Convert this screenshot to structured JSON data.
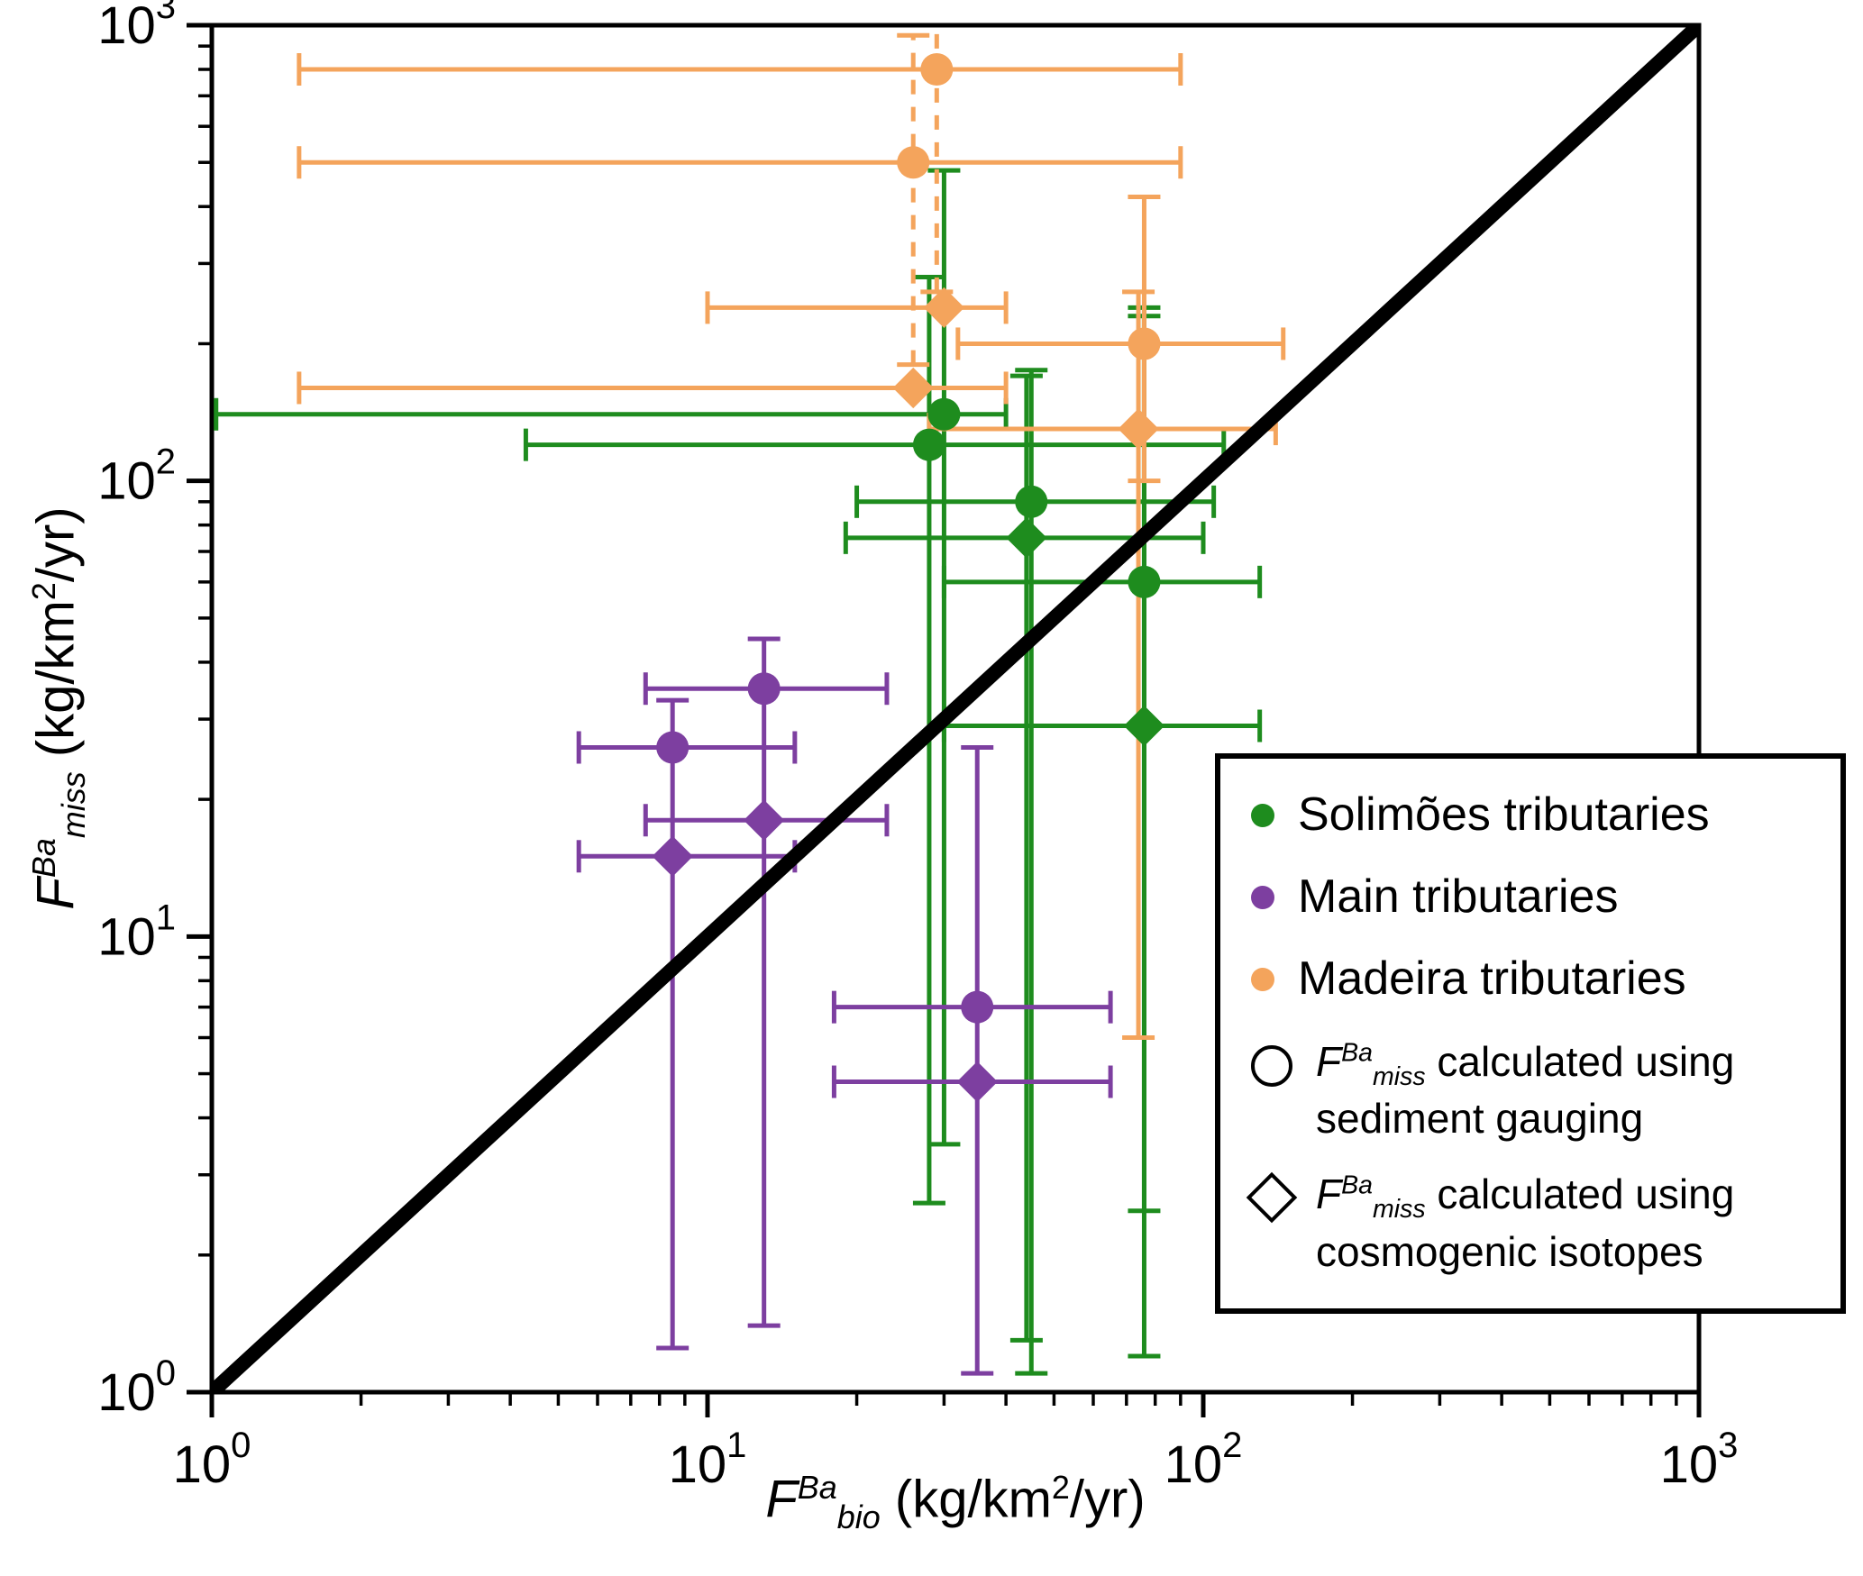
{
  "axes": {
    "x": {
      "f": "F",
      "sup": "Ba",
      "sub": "bio",
      "unit_pre": " (kg/km",
      "unit_sup": "2",
      "unit_post": "/yr)"
    },
    "y": {
      "f": "F",
      "sup": "Ba",
      "sub": "miss",
      "unit_pre": " (kg/km",
      "unit_sup": "2",
      "unit_post": "/yr)"
    }
  },
  "legend": {
    "items": [
      {
        "label": "Solimões tributaries"
      },
      {
        "label": "Main tributaries"
      },
      {
        "label": "Madeira tributaries"
      }
    ],
    "notes": [
      {
        "f": "F",
        "sup": "Ba",
        "sub": "miss",
        "rest": " calculated using",
        "line2": "sediment gauging"
      },
      {
        "f": "F",
        "sup": "Ba",
        "sub": "miss",
        "rest": " calculated using",
        "line2": "cosmogenic isotopes"
      }
    ]
  },
  "chart_data": {
    "type": "scatter",
    "x_scale": "log",
    "y_scale": "log",
    "xlim": [
      1,
      1000
    ],
    "ylim": [
      1,
      1000
    ],
    "x_tick_exponents": [
      0,
      1,
      2,
      3
    ],
    "y_tick_exponents": [
      0,
      1,
      2,
      3
    ],
    "xlabel": "F^Ba_bio (kg/km2/yr)",
    "ylabel": "F^Ba_miss (kg/km2/yr)",
    "grid": false,
    "legend_position": "lower-right",
    "one_to_one_line": {
      "from": [
        1,
        1
      ],
      "to": [
        1000,
        1000
      ],
      "color": "#000000"
    },
    "marker_meaning": {
      "circle": "sediment gauging",
      "diamond": "cosmogenic isotopes"
    },
    "series": [
      {
        "name": "Solimões tributaries",
        "color": "#1e8c1e",
        "points": [
          {
            "marker": "circle",
            "x": 30,
            "y": 140,
            "xerr": [
              1.02,
              40
            ],
            "yerr": [
              3.5,
              480
            ]
          },
          {
            "marker": "circle",
            "x": 28,
            "y": 120,
            "xerr": [
              4.3,
              110
            ],
            "yerr": [
              2.6,
              280
            ]
          },
          {
            "marker": "circle",
            "x": 45,
            "y": 90,
            "xerr": [
              20,
              105
            ],
            "yerr": [
              1.1,
              175
            ]
          },
          {
            "marker": "diamond",
            "x": 44,
            "y": 75,
            "xerr": [
              19,
              100
            ],
            "yerr": [
              1.3,
              170
            ]
          },
          {
            "marker": "circle",
            "x": 76,
            "y": 60,
            "xerr": [
              30,
              130
            ],
            "yerr": [
              2.5,
              240
            ]
          },
          {
            "marker": "diamond",
            "x": 76,
            "y": 29,
            "xerr": [
              30,
              130
            ],
            "yerr": [
              1.2,
              230
            ]
          }
        ]
      },
      {
        "name": "Main tributaries",
        "color": "#7d3fa0",
        "points": [
          {
            "marker": "circle",
            "x": 13,
            "y": 35,
            "xerr": [
              7.5,
              23
            ],
            "yerr": [
              1.4,
              45
            ]
          },
          {
            "marker": "circle",
            "x": 8.5,
            "y": 26,
            "xerr": [
              5.5,
              15
            ],
            "yerr": [
              1.25,
              33
            ]
          },
          {
            "marker": "diamond",
            "x": 13,
            "y": 18,
            "xerr": [
              7.5,
              23
            ],
            "yerr": null
          },
          {
            "marker": "diamond",
            "x": 8.5,
            "y": 15,
            "xerr": [
              5.5,
              15
            ],
            "yerr": null
          },
          {
            "marker": "circle",
            "x": 35,
            "y": 7,
            "xerr": [
              18,
              65
            ],
            "yerr": [
              1.1,
              26
            ]
          },
          {
            "marker": "diamond",
            "x": 35,
            "y": 4.8,
            "xerr": [
              18,
              65
            ],
            "yerr": null
          }
        ]
      },
      {
        "name": "Madeira tributaries",
        "color": "#f4a45c",
        "points": [
          {
            "marker": "circle",
            "x": 29,
            "y": 800,
            "xerr": [
              1.5,
              90
            ],
            "yerr": [
              260,
              1300
            ],
            "dash_y": true
          },
          {
            "marker": "circle",
            "x": 26,
            "y": 500,
            "xerr": [
              1.5,
              90
            ],
            "yerr": [
              180,
              950
            ],
            "dash_y": true
          },
          {
            "marker": "diamond",
            "x": 30,
            "y": 240,
            "xerr": [
              10,
              40
            ],
            "yerr": null
          },
          {
            "marker": "diamond",
            "x": 26,
            "y": 160,
            "xerr": [
              1.5,
              40
            ],
            "yerr": null
          },
          {
            "marker": "circle",
            "x": 76,
            "y": 200,
            "xerr": [
              32,
              145
            ],
            "yerr": [
              100,
              420
            ]
          },
          {
            "marker": "diamond",
            "x": 74,
            "y": 130,
            "xerr": [
              28,
              140
            ],
            "yerr": [
              6,
              260
            ]
          }
        ]
      }
    ]
  }
}
